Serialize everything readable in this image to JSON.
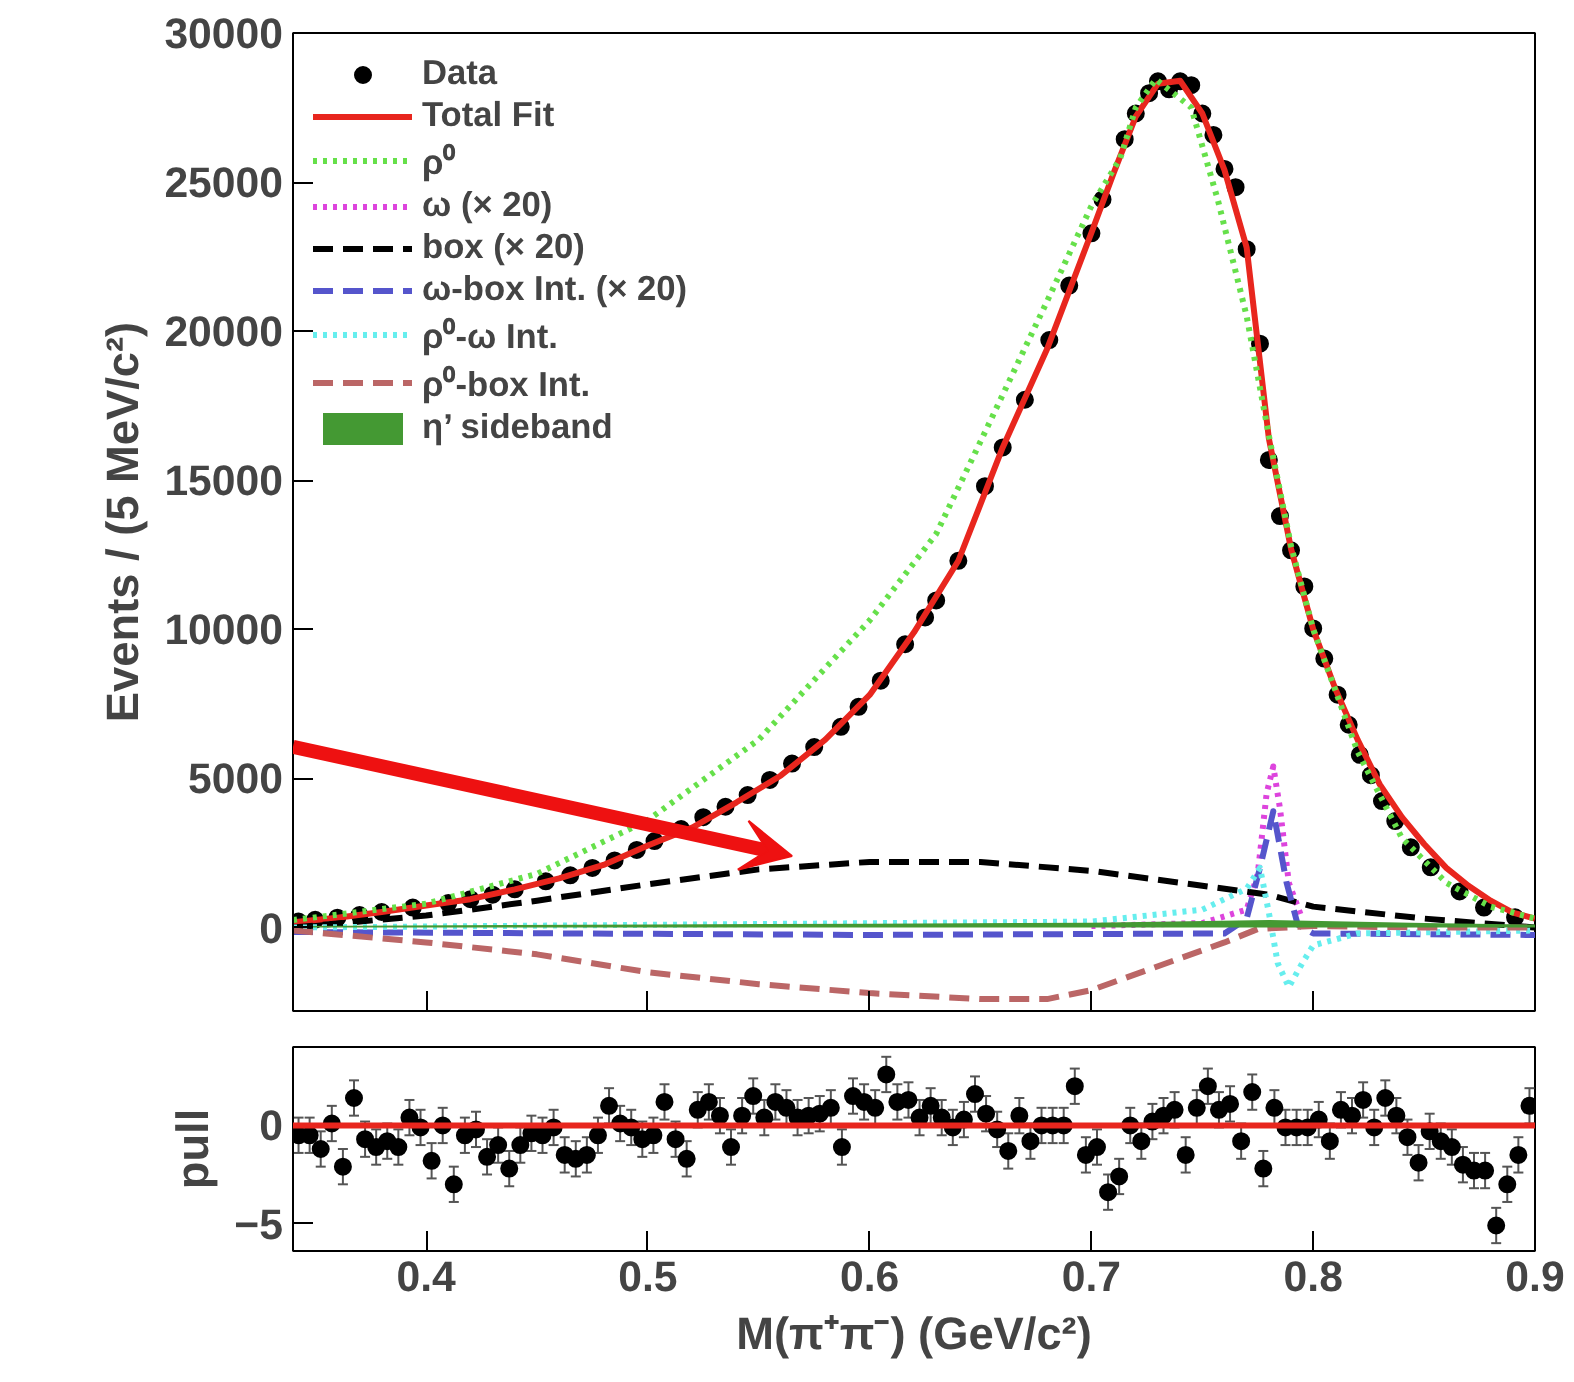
{
  "chart_data": [
    {
      "type": "scatter",
      "ylabel": "Events / (5 MeV/c²)",
      "xlim": [
        0.34,
        0.9
      ],
      "ylim": [
        -2800,
        30000
      ],
      "xticks": [
        0.4,
        0.5,
        0.6,
        0.7,
        0.8,
        0.9
      ],
      "yticks": [
        0,
        5000,
        10000,
        15000,
        20000,
        25000,
        30000
      ],
      "tick_labels": "y",
      "grid": false,
      "legend": "top left",
      "series": [
        {
          "name": "Data",
          "marker": "circle",
          "color": "#000000",
          "x": [
            0.3425,
            0.35,
            0.36,
            0.37,
            0.38,
            0.394,
            0.41,
            0.42,
            0.43,
            0.44,
            0.454,
            0.465,
            0.475,
            0.485,
            0.495,
            0.503,
            0.515,
            0.525,
            0.535,
            0.545,
            0.555,
            0.565,
            0.575,
            0.587,
            0.595,
            0.605,
            0.616,
            0.625,
            0.63,
            0.64,
            0.652,
            0.66,
            0.67,
            0.681,
            0.69,
            0.7,
            0.705,
            0.715,
            0.72,
            0.726,
            0.73,
            0.735,
            0.74,
            0.745,
            0.75,
            0.755,
            0.76,
            0.765,
            0.77,
            0.776,
            0.78,
            0.785,
            0.79,
            0.796,
            0.8,
            0.805,
            0.811,
            0.816,
            0.821,
            0.826,
            0.831,
            0.837,
            0.844,
            0.853,
            0.866,
            0.877,
            0.891
          ],
          "values": [
            200,
            260,
            330,
            420,
            520,
            670,
            820,
            950,
            1100,
            1280,
            1550,
            1750,
            2000,
            2250,
            2600,
            2900,
            3300,
            3700,
            4050,
            4440,
            4950,
            5500,
            6050,
            6730,
            7400,
            8280,
            9500,
            10400,
            10970,
            12300,
            14800,
            16100,
            17700,
            19700,
            21530,
            23280,
            24420,
            26440,
            27300,
            27980,
            28380,
            28110,
            28380,
            28250,
            27300,
            26580,
            25440,
            24830,
            22750,
            19580,
            15680,
            13800,
            12650,
            11440,
            10030,
            9020,
            7810,
            6800,
            5790,
            5110,
            4240,
            3570,
            2690,
            2020,
            1210,
            670,
            340
          ]
        },
        {
          "name": "Total Fit",
          "type": "line",
          "line_style": "solid",
          "color": "#e8261e",
          "x": [
            0.34,
            0.36,
            0.38,
            0.4,
            0.42,
            0.44,
            0.46,
            0.48,
            0.5,
            0.52,
            0.54,
            0.56,
            0.58,
            0.6,
            0.62,
            0.64,
            0.66,
            0.68,
            0.7,
            0.71,
            0.72,
            0.73,
            0.74,
            0.75,
            0.76,
            0.77,
            0.78,
            0.79,
            0.8,
            0.81,
            0.82,
            0.83,
            0.84,
            0.85,
            0.86,
            0.87,
            0.88,
            0.89,
            0.9
          ],
          "values": [
            180,
            330,
            520,
            740,
            950,
            1280,
            1650,
            2100,
            2750,
            3350,
            4200,
            5100,
            6300,
            7800,
            9900,
            12300,
            16100,
            19400,
            23300,
            25300,
            27200,
            28300,
            28400,
            27300,
            25400,
            22800,
            16400,
            12700,
            10000,
            8000,
            6300,
            4800,
            3700,
            2800,
            2000,
            1400,
            900,
            500,
            300
          ]
        },
        {
          "name": "ρ⁰",
          "type": "line",
          "line_style": "dotted",
          "color": "#66e04a",
          "x": [
            0.34,
            0.4,
            0.45,
            0.5,
            0.55,
            0.6,
            0.63,
            0.65,
            0.68,
            0.7,
            0.713,
            0.72,
            0.729,
            0.74,
            0.745,
            0.757,
            0.77,
            0.78,
            0.79,
            0.8,
            0.82,
            0.84,
            0.86,
            0.88,
            0.9
          ],
          "values": [
            250,
            800,
            1800,
            3600,
            6300,
            10300,
            13200,
            16300,
            21000,
            24200,
            25800,
            27500,
            28450,
            27800,
            27500,
            24400,
            20500,
            16500,
            12800,
            10000,
            5900,
            3000,
            1500,
            700,
            300
          ]
        },
        {
          "name": "ω (× 20)",
          "type": "line",
          "line_style": "dotted",
          "color": "#dd44dd",
          "x": [
            0.7,
            0.75,
            0.77,
            0.775,
            0.779,
            0.782,
            0.785,
            0.789,
            0.795
          ],
          "values": [
            50,
            150,
            600,
            1800,
            4500,
            5400,
            4000,
            1500,
            300
          ]
        },
        {
          "name": "box (× 20)",
          "type": "line",
          "line_style": "dashed",
          "color": "#000000",
          "x": [
            0.34,
            0.4,
            0.45,
            0.5,
            0.55,
            0.6,
            0.65,
            0.7,
            0.75,
            0.78,
            0.8,
            0.85,
            0.9
          ],
          "values": [
            0,
            400,
            900,
            1450,
            1950,
            2200,
            2200,
            1900,
            1400,
            1100,
            700,
            300,
            0
          ]
        },
        {
          "name": "ω-box Int. (× 20)",
          "type": "line",
          "line_style": "dashed",
          "color": "#5555cc",
          "x": [
            0.34,
            0.6,
            0.76,
            0.77,
            0.776,
            0.782,
            0.788,
            0.793,
            0.8,
            0.9
          ],
          "values": [
            -150,
            -250,
            -200,
            300,
            2000,
            3900,
            1500,
            100,
            -200,
            -250
          ]
        },
        {
          "name": "ρ⁰-ω Int.",
          "type": "line",
          "line_style": "dotted",
          "color": "#66eeee",
          "x": [
            0.34,
            0.7,
            0.75,
            0.77,
            0.776,
            0.78,
            0.784,
            0.789,
            0.795,
            0.8,
            0.82,
            0.9
          ],
          "values": [
            0,
            200,
            600,
            1300,
            2000,
            500,
            -1200,
            -2000,
            -1200,
            -600,
            -200,
            -100
          ]
        },
        {
          "name": "ρ⁰-box Int.",
          "type": "line",
          "line_style": "dashed",
          "color": "#bb6666",
          "x": [
            0.34,
            0.4,
            0.45,
            0.5,
            0.55,
            0.6,
            0.65,
            0.68,
            0.7,
            0.73,
            0.76,
            0.775,
            0.8,
            0.85,
            0.9
          ],
          "values": [
            -100,
            -500,
            -900,
            -1500,
            -1900,
            -2200,
            -2400,
            -2400,
            -2100,
            -1300,
            -500,
            -50,
            50,
            0,
            0
          ]
        },
        {
          "name": "η’ sideband",
          "type": "area",
          "color": "#449933",
          "x": [
            0.34,
            0.5,
            0.6,
            0.7,
            0.78,
            0.85,
            0.9
          ],
          "values": [
            50,
            100,
            130,
            160,
            250,
            150,
            100
          ]
        }
      ]
    },
    {
      "type": "scatter",
      "xlabel": "M(π⁺π⁻) (GeV/c²)",
      "ylabel": "pull",
      "xlim": [
        0.34,
        0.9
      ],
      "ylim": [
        -6.4,
        4
      ],
      "xticks": [
        0.4,
        0.5,
        0.6,
        0.7,
        0.8,
        0.9
      ],
      "yticks": [
        -5,
        0
      ],
      "grid": false,
      "marker": "circle",
      "ref_lines": [
        {
          "axis": "y",
          "value": 0,
          "color": "#e8261e"
        }
      ],
      "series": [
        {
          "color": "#000000",
          "x": [
            0.3425,
            0.3475,
            0.3525,
            0.3575,
            0.3625,
            0.3675,
            0.3725,
            0.3775,
            0.3825,
            0.3875,
            0.3925,
            0.3975,
            0.4025,
            0.4075,
            0.4125,
            0.4175,
            0.4225,
            0.4275,
            0.4325,
            0.4375,
            0.4425,
            0.4475,
            0.4525,
            0.4575,
            0.4625,
            0.4675,
            0.4725,
            0.4775,
            0.4825,
            0.4875,
            0.4925,
            0.4975,
            0.5025,
            0.5075,
            0.5125,
            0.5175,
            0.5225,
            0.5275,
            0.5325,
            0.5375,
            0.5425,
            0.5475,
            0.5525,
            0.5575,
            0.5625,
            0.5675,
            0.5725,
            0.5775,
            0.5825,
            0.5875,
            0.5925,
            0.5975,
            0.6025,
            0.6075,
            0.6125,
            0.6175,
            0.6225,
            0.6275,
            0.6325,
            0.6375,
            0.6425,
            0.6475,
            0.6525,
            0.6575,
            0.6625,
            0.6675,
            0.6725,
            0.6775,
            0.6825,
            0.6875,
            0.6925,
            0.6975,
            0.7025,
            0.7075,
            0.7125,
            0.7175,
            0.7225,
            0.7275,
            0.7325,
            0.7375,
            0.7425,
            0.7475,
            0.7525,
            0.7575,
            0.7625,
            0.7675,
            0.7725,
            0.7775,
            0.7825,
            0.7875,
            0.7925,
            0.7975,
            0.8025,
            0.8075,
            0.8125,
            0.8175,
            0.8225,
            0.8275,
            0.8325,
            0.8375,
            0.8425,
            0.8475,
            0.8525,
            0.8575,
            0.8625,
            0.8675,
            0.8725,
            0.8775,
            0.8825,
            0.8875,
            0.8925,
            0.8975
          ],
          "values": [
            -0.5,
            -0.5,
            -1.2,
            0.1,
            -2.1,
            1.4,
            -0.7,
            -1.1,
            -0.8,
            -1.1,
            0.4,
            -0.1,
            -1.8,
            0.0,
            -3.0,
            -0.5,
            -0.2,
            -1.6,
            -1.0,
            -2.2,
            -1.0,
            -0.4,
            -0.5,
            -0.1,
            -1.5,
            -1.7,
            -1.5,
            -0.5,
            1.0,
            0.1,
            -0.1,
            -0.7,
            -0.5,
            1.2,
            -0.7,
            -1.7,
            0.8,
            1.2,
            0.5,
            -1.1,
            0.5,
            1.5,
            0.4,
            1.2,
            0.9,
            0.4,
            0.5,
            0.6,
            0.9,
            -1.1,
            1.5,
            1.2,
            0.9,
            2.6,
            1.2,
            1.3,
            0.4,
            1.0,
            0.4,
            -0.1,
            0.3,
            1.6,
            0.6,
            -0.2,
            -1.3,
            0.5,
            -0.8,
            0.0,
            0.0,
            0.0,
            2.0,
            -1.5,
            -1.1,
            -3.4,
            -2.6,
            0.0,
            -0.8,
            0.2,
            0.5,
            0.8,
            -1.5,
            0.9,
            2.0,
            0.8,
            1.1,
            -0.8,
            1.7,
            -2.2,
            0.9,
            -0.1,
            -0.1,
            -0.1,
            0.3,
            -0.8,
            0.8,
            0.5,
            1.3,
            -0.1,
            1.4,
            0.5,
            -0.6,
            -1.9,
            -0.3,
            -0.8,
            -1.1,
            -2.0,
            -2.3,
            -2.3,
            -5.1,
            -3.0,
            -1.5,
            1.0
          ],
          "errors": [
            0.9,
            0.9,
            0.9,
            0.9,
            0.9,
            0.9,
            0.9,
            0.9,
            0.9,
            0.9,
            0.9,
            0.9,
            0.9,
            0.9,
            0.9,
            0.9,
            0.9,
            0.9,
            0.9,
            0.9,
            0.9,
            0.9,
            0.9,
            0.9,
            0.9,
            0.9,
            0.9,
            0.9,
            0.9,
            0.9,
            0.9,
            0.9,
            0.9,
            0.9,
            0.9,
            0.9,
            0.9,
            0.9,
            0.9,
            0.9,
            0.9,
            0.9,
            0.9,
            0.9,
            0.9,
            0.9,
            0.9,
            0.9,
            0.9,
            0.9,
            0.9,
            0.9,
            0.9,
            0.9,
            0.9,
            0.9,
            0.9,
            0.9,
            0.9,
            0.9,
            0.9,
            0.9,
            0.9,
            0.9,
            0.9,
            0.9,
            0.9,
            0.9,
            0.9,
            0.9,
            0.9,
            0.9,
            0.9,
            0.9,
            0.9,
            0.9,
            0.9,
            0.9,
            0.9,
            0.9,
            0.9,
            0.9,
            0.9,
            0.9,
            0.9,
            0.9,
            0.9,
            0.9,
            0.9,
            0.9,
            0.9,
            0.9,
            0.9,
            0.9,
            0.9,
            0.9,
            0.9,
            0.9,
            0.9,
            0.9,
            0.9,
            0.9,
            0.9,
            0.9,
            0.9,
            0.9,
            0.9,
            0.9,
            0.9,
            0.9,
            0.9,
            0.9
          ]
        }
      ]
    }
  ]
}
